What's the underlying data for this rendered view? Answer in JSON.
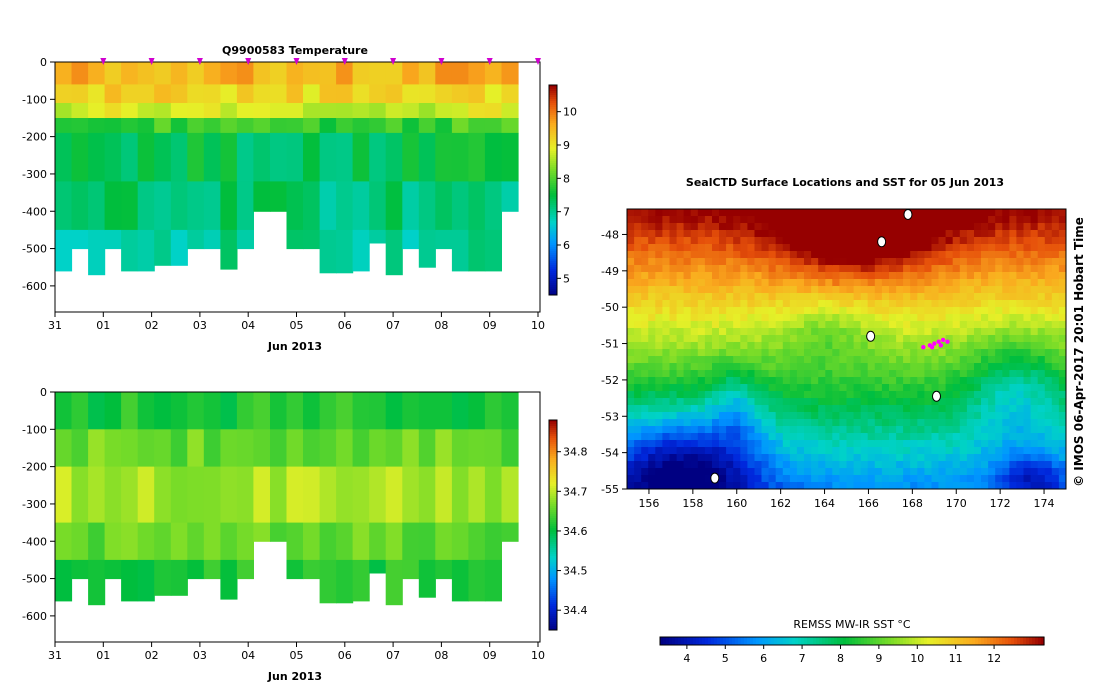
{
  "chart_data": [
    {
      "type": "heatmap",
      "title": "Q9900583  Temperature",
      "xlabel": "Jun 2013",
      "x_ticks": [
        "31",
        "01",
        "02",
        "03",
        "04",
        "05",
        "06",
        "07",
        "08",
        "09",
        "10"
      ],
      "y_ticks": [
        "0",
        "-100",
        "-200",
        "-300",
        "-400",
        "-500",
        "-600"
      ],
      "ylim": [
        -670,
        0
      ],
      "profile_markers": [
        "01",
        "02",
        "03",
        "04",
        "05",
        "06",
        "07",
        "08",
        "09",
        "10"
      ],
      "colorbar": {
        "ticks": [
          "5",
          "6",
          "7",
          "8",
          "9",
          "10"
        ],
        "range": [
          4.5,
          10.8
        ]
      },
      "profile_depths": [
        -560,
        -500,
        -570,
        -500,
        -560,
        -560,
        -545,
        -545,
        -500,
        -500,
        -555,
        -500,
        -400,
        -400,
        -500,
        -500,
        -565,
        -565,
        -560,
        -485,
        -570,
        -500,
        -550,
        -500,
        -560,
        -560,
        -560,
        -400
      ],
      "layers": [
        {
          "depth": [
            0,
            -60
          ],
          "value": 9.6
        },
        {
          "depth": [
            -60,
            -110
          ],
          "value": 9.2
        },
        {
          "depth": [
            -110,
            -150
          ],
          "value": 8.8
        },
        {
          "depth": [
            -150,
            -190
          ],
          "value": 7.9
        },
        {
          "depth": [
            -190,
            -320
          ],
          "value": 7.4
        },
        {
          "depth": [
            -320,
            -450
          ],
          "value": 7.2
        },
        {
          "depth": [
            -450,
            -600
          ],
          "value": 7.0
        }
      ]
    },
    {
      "type": "heatmap",
      "title": "",
      "xlabel": "Jun 2013",
      "x_ticks": [
        "31",
        "01",
        "02",
        "03",
        "04",
        "05",
        "06",
        "07",
        "08",
        "09",
        "10"
      ],
      "y_ticks": [
        "0",
        "-100",
        "-200",
        "-300",
        "-400",
        "-500",
        "-600"
      ],
      "ylim": [
        -670,
        0
      ],
      "colorbar": {
        "ticks": [
          "34.4",
          "34.5",
          "34.6",
          "34.7",
          "34.8"
        ],
        "range": [
          34.35,
          34.88
        ]
      },
      "profile_depths": [
        -560,
        -500,
        -570,
        -500,
        -560,
        -560,
        -545,
        -545,
        -500,
        -500,
        -555,
        -500,
        -400,
        -400,
        -500,
        -500,
        -565,
        -565,
        -560,
        -485,
        -570,
        -500,
        -550,
        -500,
        -560,
        -560,
        -560,
        -400
      ],
      "layers": [
        {
          "depth": [
            0,
            -100
          ],
          "value": 34.62
        },
        {
          "depth": [
            -100,
            -200
          ],
          "value": 34.66
        },
        {
          "depth": [
            -200,
            -350
          ],
          "value": 34.69
        },
        {
          "depth": [
            -350,
            -450
          ],
          "value": 34.66
        },
        {
          "depth": [
            -450,
            -600
          ],
          "value": 34.62
        }
      ]
    },
    {
      "type": "heatmap",
      "title": "SealCTD Surface Locations and SST for 05 Jun 2013",
      "x_ticks": [
        "156",
        "158",
        "160",
        "162",
        "164",
        "166",
        "168",
        "170",
        "172",
        "174"
      ],
      "y_ticks": [
        "-48",
        "-49",
        "-50",
        "-51",
        "-52",
        "-53",
        "-54",
        "-55"
      ],
      "xlim": [
        155,
        175
      ],
      "ylim": [
        -55,
        -47.3
      ],
      "colorbar": {
        "label": "REMSS MW-IR SST °C",
        "ticks": [
          "4",
          "5",
          "6",
          "7",
          "8",
          "9",
          "10",
          "11",
          "12"
        ],
        "range": [
          3.3,
          13.3
        ]
      },
      "side_label": "© IMOS 06-Apr-2017 20:01 Hobart Time",
      "surface_locations": [
        {
          "lon": 168.5,
          "lat": -51.1
        },
        {
          "lon": 168.8,
          "lat": -51.05
        },
        {
          "lon": 169.0,
          "lat": -51.0
        },
        {
          "lon": 169.2,
          "lat": -50.95
        },
        {
          "lon": 169.4,
          "lat": -50.9
        },
        {
          "lon": 169.6,
          "lat": -50.95
        },
        {
          "lon": 168.9,
          "lat": -51.1
        },
        {
          "lon": 169.3,
          "lat": -51.05
        }
      ]
    }
  ]
}
